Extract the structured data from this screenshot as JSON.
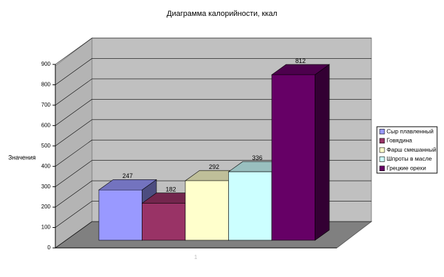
{
  "chart_data": {
    "type": "bar3d",
    "title": "Диаграмма калорийности, ккал",
    "y_label": "Значения",
    "categories": [
      "1"
    ],
    "series": [
      {
        "name": "Сыр плавленный",
        "color": "#9999ff",
        "values": [
          247
        ]
      },
      {
        "name": "Говядина",
        "color": "#993366",
        "values": [
          182
        ]
      },
      {
        "name": "Фарш смешанный",
        "color": "#ffffcc",
        "values": [
          292
        ]
      },
      {
        "name": "Шпроты в масле",
        "color": "#ccffff",
        "values": [
          336
        ]
      },
      {
        "name": "Грецкие орехи",
        "color": "#660066",
        "values": [
          812
        ]
      }
    ],
    "ylim": [
      0,
      900
    ],
    "yticks": [
      0,
      100,
      200,
      300,
      400,
      500,
      600,
      700,
      800,
      900
    ],
    "grid": true,
    "legend": "right"
  }
}
